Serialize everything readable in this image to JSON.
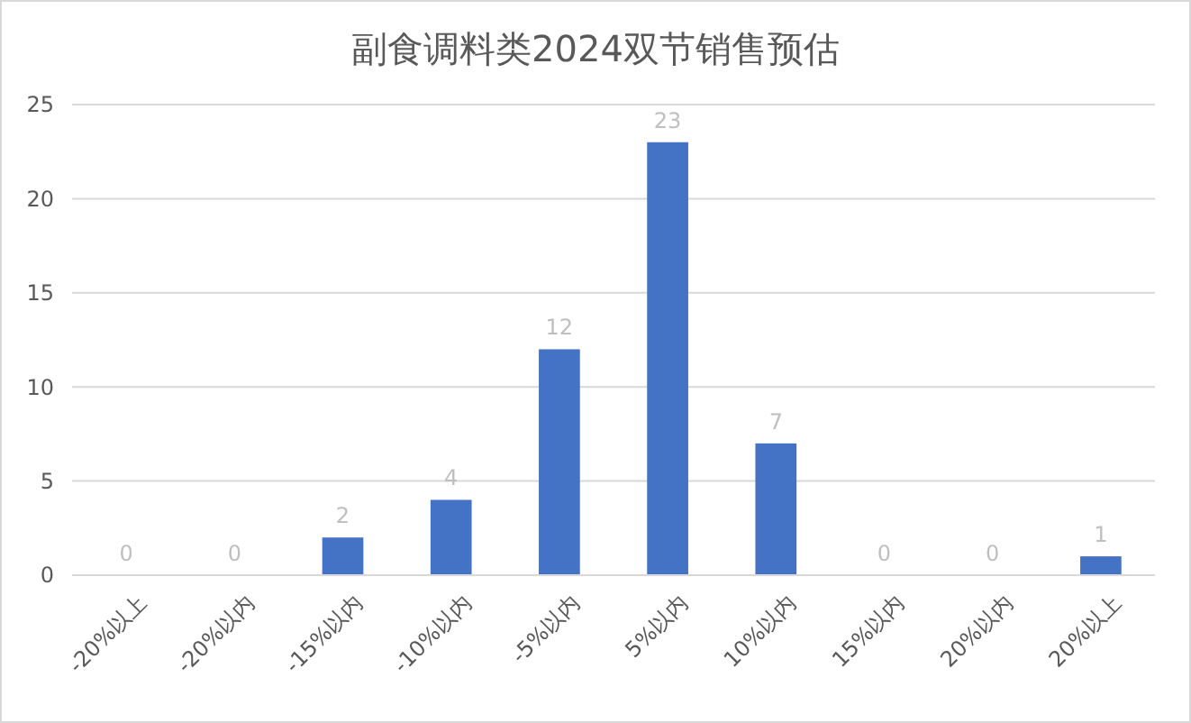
{
  "chart_data": {
    "type": "bar",
    "title": "副食调料类2024双节销售预估",
    "categories": [
      "-20%以上",
      "-20%以内",
      "-15%以内",
      "-10%以内",
      "-5%以内",
      "5%以内",
      "10%以内",
      "15%以内",
      "20%以内",
      "20%以上"
    ],
    "values": [
      0,
      0,
      2,
      4,
      12,
      23,
      7,
      0,
      0,
      1
    ],
    "color": "#4472c4",
    "ylim": [
      0,
      25
    ],
    "yticks": [
      0,
      5,
      10,
      15,
      20,
      25
    ],
    "grid": "y",
    "data_labels": true
  }
}
